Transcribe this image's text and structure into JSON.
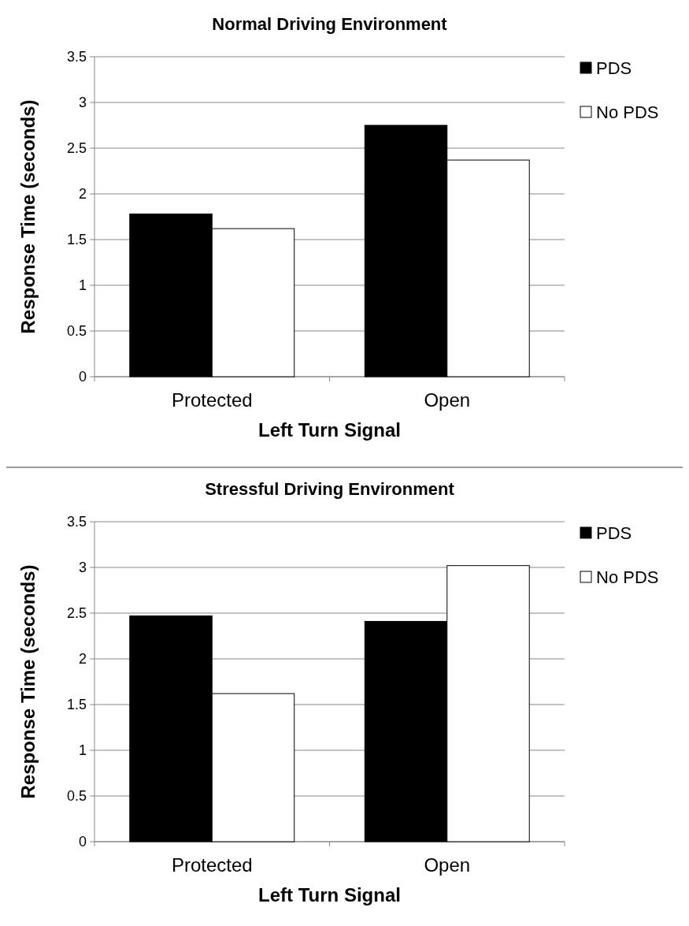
{
  "chart_data": [
    {
      "type": "bar",
      "title": "Normal  Driving  Environment",
      "xlabel": "Left Turn Signal",
      "ylabel": "Response Time (seconds)",
      "categories": [
        "Protected",
        "Open"
      ],
      "series": [
        {
          "name": "PDS",
          "color": "#000000",
          "values": [
            1.78,
            2.75
          ]
        },
        {
          "name": "No PDS",
          "color": "#ffffff",
          "values": [
            1.62,
            2.37
          ]
        }
      ],
      "ylim": [
        0,
        3.5
      ],
      "yticks": [
        0,
        0.5,
        1,
        1.5,
        2,
        2.5,
        3,
        3.5
      ],
      "grid": "y",
      "legend": "top right"
    },
    {
      "type": "bar",
      "title": "Stressful  Driving  Environment",
      "xlabel": "Left Turn Signal",
      "ylabel": "Response Time (seconds)",
      "categories": [
        "Protected",
        "Open"
      ],
      "series": [
        {
          "name": "PDS",
          "color": "#000000",
          "values": [
            2.47,
            2.41
          ]
        },
        {
          "name": "No PDS",
          "color": "#ffffff",
          "values": [
            1.62,
            3.02
          ]
        }
      ],
      "ylim": [
        0,
        3.5
      ],
      "yticks": [
        0,
        0.5,
        1,
        1.5,
        2,
        2.5,
        3,
        3.5
      ],
      "grid": "y",
      "legend": "top right"
    }
  ]
}
